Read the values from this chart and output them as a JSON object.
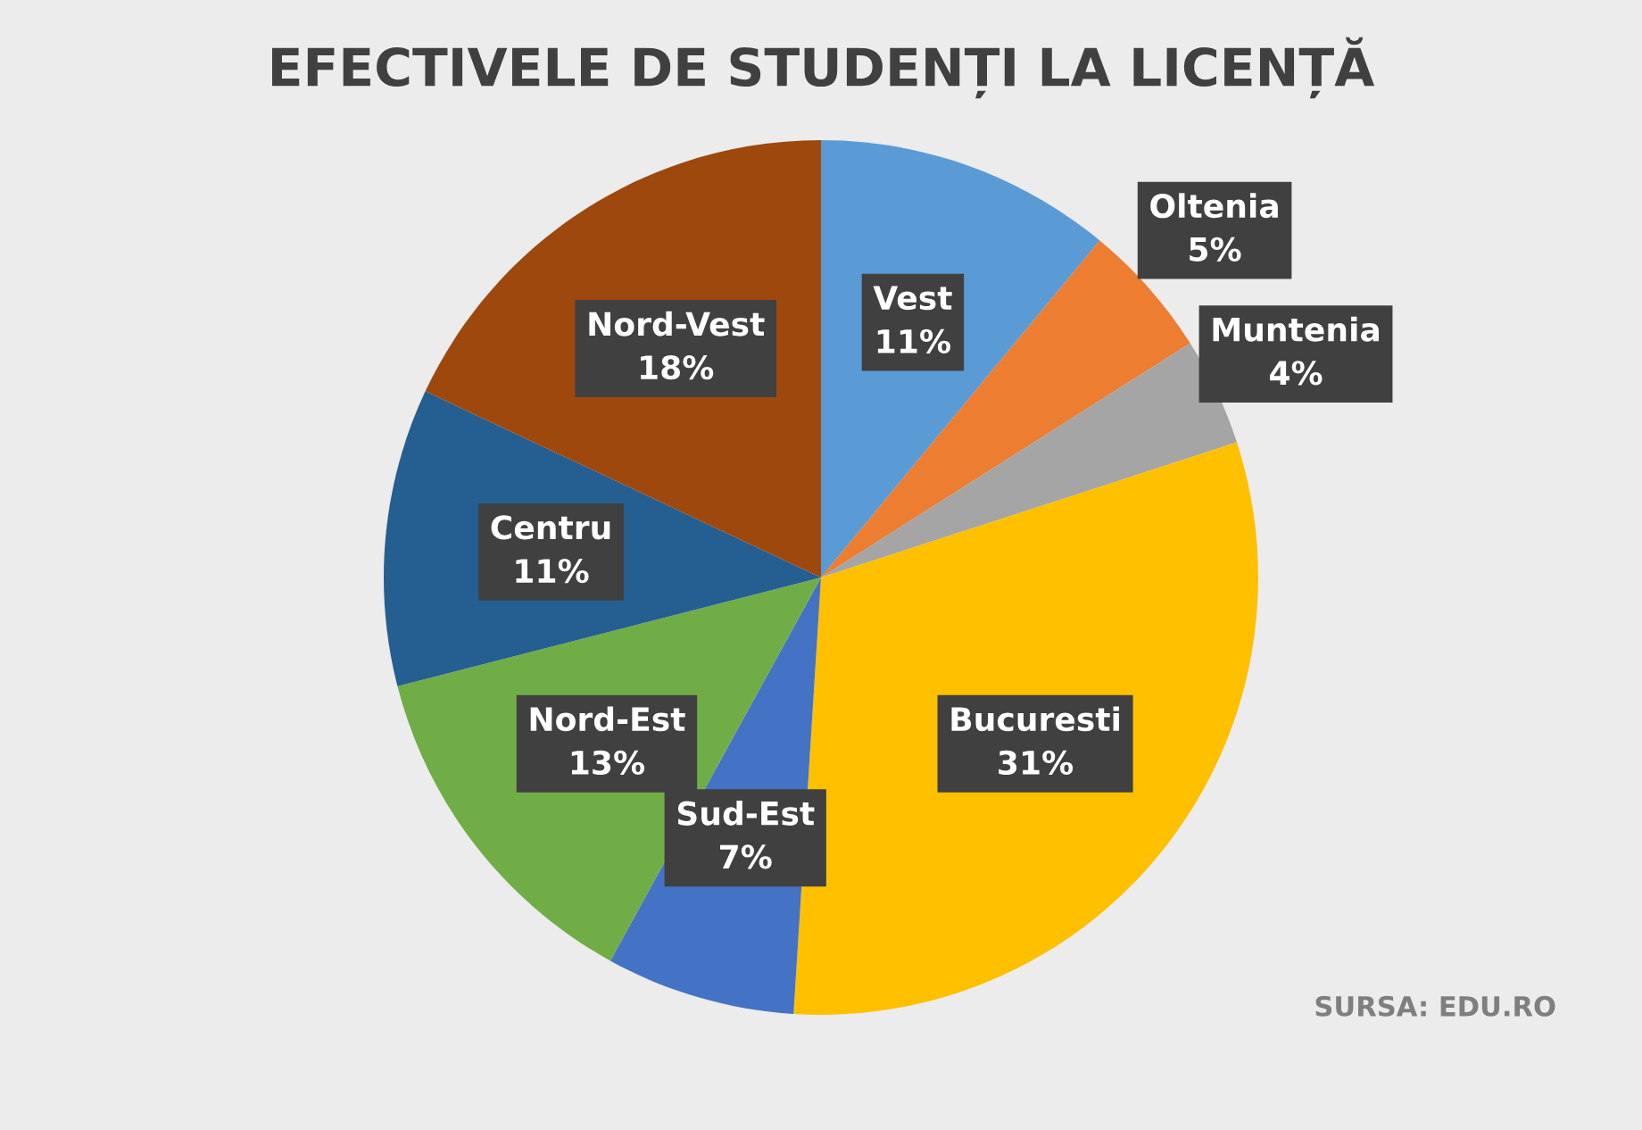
{
  "chart_data": {
    "type": "pie",
    "title": "EFECTIVELE DE STUDENȚI LA LICENȚĂ",
    "categories": [
      "Vest",
      "Oltenia",
      "Muntenia",
      "Bucuresti",
      "Sud-Est",
      "Nord-Est",
      "Centru",
      "Nord-Vest"
    ],
    "values": [
      11,
      5,
      4,
      31,
      7,
      13,
      11,
      18
    ],
    "value_labels": [
      "11%",
      "5%",
      "4%",
      "31%",
      "7%",
      "13%",
      "11%",
      "18%"
    ],
    "colors": [
      "#5b9bd5",
      "#ed7d31",
      "#a5a5a5",
      "#ffc000",
      "#4472c4",
      "#70ad47",
      "#255e91",
      "#9e480e"
    ],
    "annotations": [
      "SURSA: EDU.RO"
    ]
  }
}
